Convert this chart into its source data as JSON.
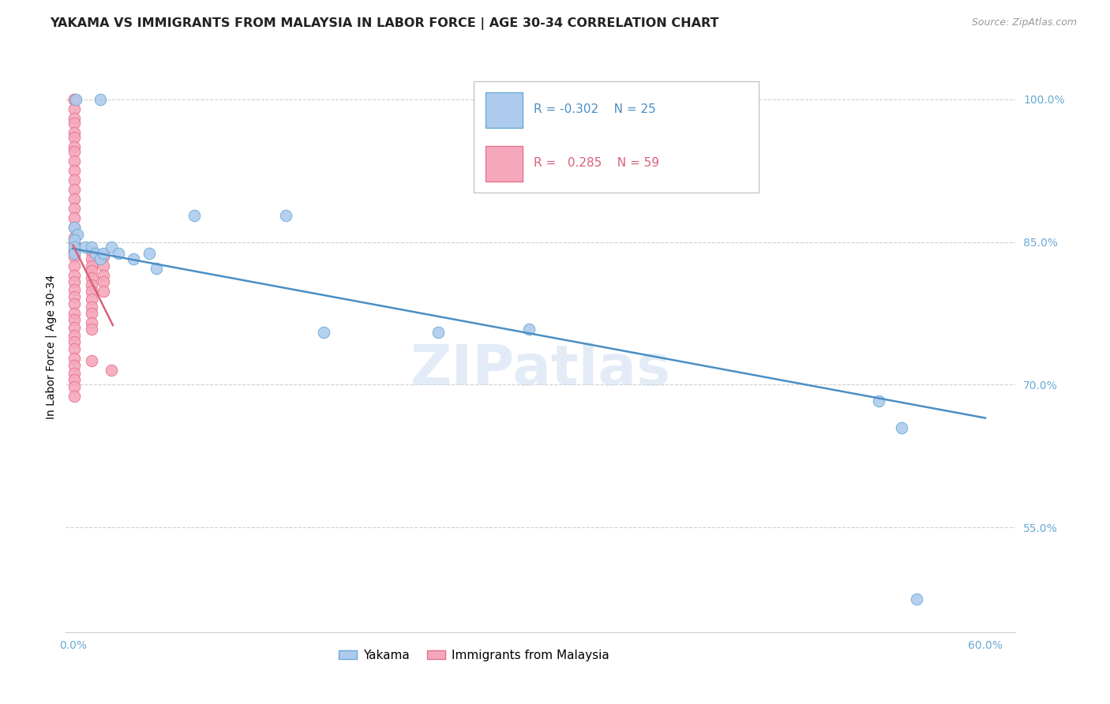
{
  "title": "YAKAMA VS IMMIGRANTS FROM MALAYSIA IN LABOR FORCE | AGE 30-34 CORRELATION CHART",
  "source": "Source: ZipAtlas.com",
  "ylabel": "In Labor Force | Age 30-34",
  "legend_labels": [
    "Yakama",
    "Immigrants from Malaysia"
  ],
  "yakama_R": -0.302,
  "yakama_N": 25,
  "malaysia_R": 0.285,
  "malaysia_N": 59,
  "yakama_color": "#aecbee",
  "malaysia_color": "#f5a8bc",
  "yakama_edge_color": "#6aaad4",
  "malaysia_edge_color": "#e8708a",
  "yakama_line_color": "#4b8fc4",
  "malaysia_line_color": "#d9607a",
  "watermark": "ZIPatlas",
  "xlim": [
    -0.005,
    0.62
  ],
  "ylim": [
    0.44,
    1.04
  ],
  "yticks": [
    0.55,
    0.7,
    0.85,
    1.0
  ],
  "ytick_labels": [
    "55.0%",
    "70.0%",
    "85.0%",
    "100.0%"
  ],
  "xticks": [
    0.0,
    0.1,
    0.2,
    0.3,
    0.4,
    0.5,
    0.6
  ],
  "xtick_labels": [
    "0.0%",
    "",
    "",
    "",
    "",
    "",
    "60.0%"
  ],
  "yakama_x": [
    0.002,
    0.018,
    0.001,
    0.003,
    0.001,
    0.001,
    0.001,
    0.008,
    0.012,
    0.015,
    0.018,
    0.02,
    0.025,
    0.03,
    0.04,
    0.05,
    0.055,
    0.08,
    0.14,
    0.165,
    0.24,
    0.3,
    0.53,
    0.545,
    0.555
  ],
  "yakama_y": [
    1.0,
    1.0,
    0.865,
    0.858,
    0.852,
    0.845,
    0.838,
    0.845,
    0.845,
    0.838,
    0.832,
    0.838,
    0.845,
    0.838,
    0.832,
    0.838,
    0.822,
    0.878,
    0.878,
    0.755,
    0.755,
    0.758,
    0.683,
    0.655,
    0.475
  ],
  "malaysia_x": [
    0.001,
    0.001,
    0.001,
    0.001,
    0.001,
    0.001,
    0.001,
    0.001,
    0.001,
    0.001,
    0.001,
    0.001,
    0.001,
    0.001,
    0.001,
    0.001,
    0.001,
    0.001,
    0.001,
    0.001,
    0.001,
    0.001,
    0.001,
    0.001,
    0.001,
    0.001,
    0.001,
    0.001,
    0.001,
    0.001,
    0.001,
    0.001,
    0.001,
    0.001,
    0.001,
    0.001,
    0.001,
    0.001,
    0.001,
    0.001,
    0.012,
    0.012,
    0.012,
    0.012,
    0.012,
    0.012,
    0.012,
    0.012,
    0.012,
    0.012,
    0.012,
    0.012,
    0.012,
    0.02,
    0.02,
    0.02,
    0.02,
    0.02,
    0.025
  ],
  "malaysia_y": [
    1.0,
    1.0,
    0.99,
    0.98,
    0.975,
    0.965,
    0.96,
    0.95,
    0.945,
    0.935,
    0.925,
    0.915,
    0.905,
    0.895,
    0.885,
    0.875,
    0.865,
    0.855,
    0.85,
    0.84,
    0.835,
    0.825,
    0.815,
    0.808,
    0.8,
    0.792,
    0.785,
    0.775,
    0.768,
    0.76,
    0.752,
    0.745,
    0.738,
    0.728,
    0.72,
    0.712,
    0.705,
    0.698,
    0.688,
    0.84,
    0.84,
    0.832,
    0.825,
    0.82,
    0.812,
    0.805,
    0.798,
    0.79,
    0.782,
    0.775,
    0.765,
    0.758,
    0.725,
    0.835,
    0.825,
    0.815,
    0.808,
    0.798,
    0.715
  ],
  "background_color": "#ffffff",
  "grid_color": "#d0d0d0",
  "tick_color": "#6aaad4",
  "title_fontsize": 11.5,
  "axis_label_fontsize": 10,
  "tick_fontsize": 10,
  "source_fontsize": 9
}
